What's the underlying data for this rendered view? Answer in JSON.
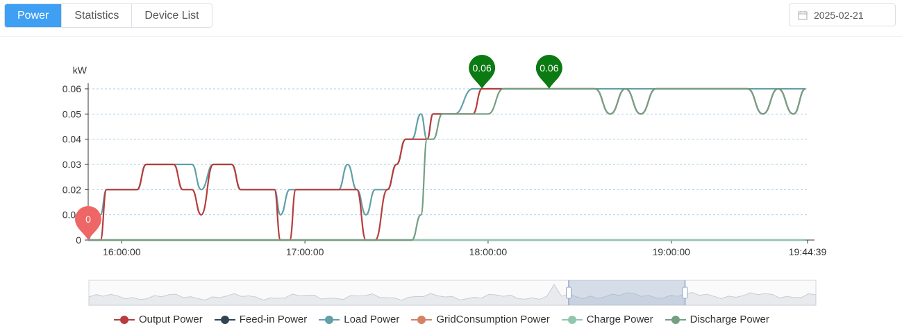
{
  "tabs": [
    {
      "label": "Power",
      "active": true
    },
    {
      "label": "Statistics",
      "active": false
    },
    {
      "label": "Device List",
      "active": false
    }
  ],
  "date_picker": {
    "value": "2025-02-21",
    "icon": "calendar-icon"
  },
  "chart_data": {
    "type": "line",
    "ylabel": "kW",
    "ylim": [
      0,
      0.06
    ],
    "yticks": [
      "0",
      "0.01",
      "0.02",
      "0.03",
      "0.04",
      "0.05",
      "0.06"
    ],
    "x_range": [
      "15:49:00",
      "19:44:39"
    ],
    "xticks": [
      "16:00:00",
      "17:00:00",
      "18:00:00",
      "19:00:00",
      "19:44:39"
    ],
    "grid": "horizontal dashed",
    "legend_position": "bottom",
    "series": [
      {
        "name": "Output Power",
        "color": "#b83c3c",
        "x": [
          "15:49",
          "15:51",
          "15:53",
          "15:55",
          "15:58",
          "16:05",
          "16:08",
          "16:11",
          "16:17",
          "16:20",
          "16:23",
          "16:26",
          "16:30",
          "16:36",
          "16:39",
          "16:42",
          "16:50",
          "16:52",
          "16:55",
          "16:57",
          "17:00",
          "17:02",
          "17:05",
          "17:11",
          "17:14",
          "17:17",
          "17:20",
          "17:23",
          "17:27",
          "17:30",
          "17:33",
          "17:35",
          "17:38",
          "17:40",
          "17:42",
          "17:45",
          "17:49",
          "17:55",
          "17:58",
          "18:00",
          "18:05",
          "18:15",
          "18:20",
          "18:25",
          "18:35",
          "18:40",
          "18:45",
          "18:50",
          "18:55",
          "19:00",
          "19:10",
          "19:15",
          "19:20",
          "19:25",
          "19:30",
          "19:35",
          "19:40",
          "19:44"
        ],
        "y": [
          0,
          0,
          0,
          0.02,
          0.02,
          0.02,
          0.03,
          0.03,
          0.03,
          0.02,
          0.02,
          0.01,
          0.03,
          0.03,
          0.02,
          0.02,
          0.02,
          0,
          0,
          0.02,
          0.02,
          0.02,
          0.02,
          0.02,
          0.02,
          0.02,
          0,
          0,
          0.02,
          0.03,
          0.04,
          0.04,
          0.04,
          0.04,
          0.05,
          0.05,
          0.05,
          0.05,
          0.06,
          0.06,
          0.06,
          0.06,
          0.06,
          0.06,
          0.06,
          0.05,
          0.06,
          0.05,
          0.06,
          0.06,
          0.06,
          0.06,
          0.06,
          0.06,
          0.05,
          0.06,
          0.05,
          0.06
        ]
      },
      {
        "name": "Feed-in Power",
        "color": "#2f4554",
        "x": [
          "15:49",
          "19:44"
        ],
        "y": [
          0,
          0
        ]
      },
      {
        "name": "Load Power",
        "color": "#61a0a8",
        "x": [
          "15:49",
          "15:51",
          "15:53",
          "15:55",
          "15:58",
          "16:05",
          "16:08",
          "16:11",
          "16:17",
          "16:20",
          "16:23",
          "16:26",
          "16:30",
          "16:36",
          "16:39",
          "16:42",
          "16:50",
          "16:52",
          "16:55",
          "16:57",
          "17:00",
          "17:02",
          "17:05",
          "17:11",
          "17:14",
          "17:17",
          "17:20",
          "17:23",
          "17:27",
          "17:30",
          "17:33",
          "17:35",
          "17:38",
          "17:40",
          "17:42",
          "17:45",
          "17:49",
          "17:55",
          "17:58",
          "18:00",
          "18:05",
          "18:15",
          "18:20",
          "18:25",
          "18:35",
          "18:40",
          "18:45",
          "18:50",
          "18:55",
          "19:00",
          "19:10",
          "19:15",
          "19:20",
          "19:25",
          "19:30",
          "19:35",
          "19:40",
          "19:44"
        ],
        "y": [
          0,
          0.01,
          0.01,
          0.02,
          0.02,
          0.02,
          0.03,
          0.03,
          0.03,
          0.03,
          0.03,
          0.02,
          0.03,
          0.03,
          0.02,
          0.02,
          0.02,
          0.01,
          0.02,
          0.02,
          0.02,
          0.02,
          0.02,
          0.02,
          0.03,
          0.02,
          0.01,
          0.02,
          0.02,
          0.03,
          0.04,
          0.04,
          0.05,
          0.04,
          0.05,
          0.05,
          0.05,
          0.06,
          0.06,
          0.06,
          0.06,
          0.06,
          0.06,
          0.06,
          0.06,
          0.06,
          0.06,
          0.06,
          0.06,
          0.06,
          0.06,
          0.06,
          0.06,
          0.06,
          0.06,
          0.06,
          0.06,
          0.06
        ]
      },
      {
        "name": "GridConsumption Power",
        "color": "#d48265",
        "x": [
          "15:49",
          "19:44"
        ],
        "y": [
          0,
          0
        ]
      },
      {
        "name": "Charge Power",
        "color": "#91c7ae",
        "x": [
          "15:49",
          "19:44"
        ],
        "y": [
          0,
          0
        ]
      },
      {
        "name": "Discharge Power",
        "color": "#749f83",
        "x": [
          "15:49",
          "17:35",
          "17:38",
          "17:40",
          "17:42",
          "17:45",
          "17:49",
          "17:55",
          "17:58",
          "18:00",
          "18:05",
          "18:15",
          "18:20",
          "18:25",
          "18:35",
          "18:40",
          "18:45",
          "18:50",
          "18:55",
          "19:00",
          "19:10",
          "19:15",
          "19:20",
          "19:25",
          "19:30",
          "19:35",
          "19:40",
          "19:44"
        ],
        "y": [
          0,
          0,
          0.01,
          0.04,
          0.04,
          0.05,
          0.05,
          0.05,
          0.05,
          0.05,
          0.06,
          0.06,
          0.06,
          0.06,
          0.06,
          0.05,
          0.06,
          0.05,
          0.06,
          0.06,
          0.06,
          0.06,
          0.06,
          0.06,
          0.05,
          0.06,
          0.05,
          0.06
        ]
      }
    ],
    "markers": [
      {
        "label": "0",
        "x": "15:49",
        "y": 0,
        "color": "#ee6666"
      },
      {
        "label": "0.06",
        "x": "17:58",
        "y": 0.06,
        "color": "#0b7a12"
      },
      {
        "label": "0.06",
        "x": "18:20",
        "y": 0.06,
        "color": "#0b7a12"
      }
    ],
    "zoom_window": {
      "start_fraction": 0.66,
      "end_fraction": 0.82
    }
  }
}
